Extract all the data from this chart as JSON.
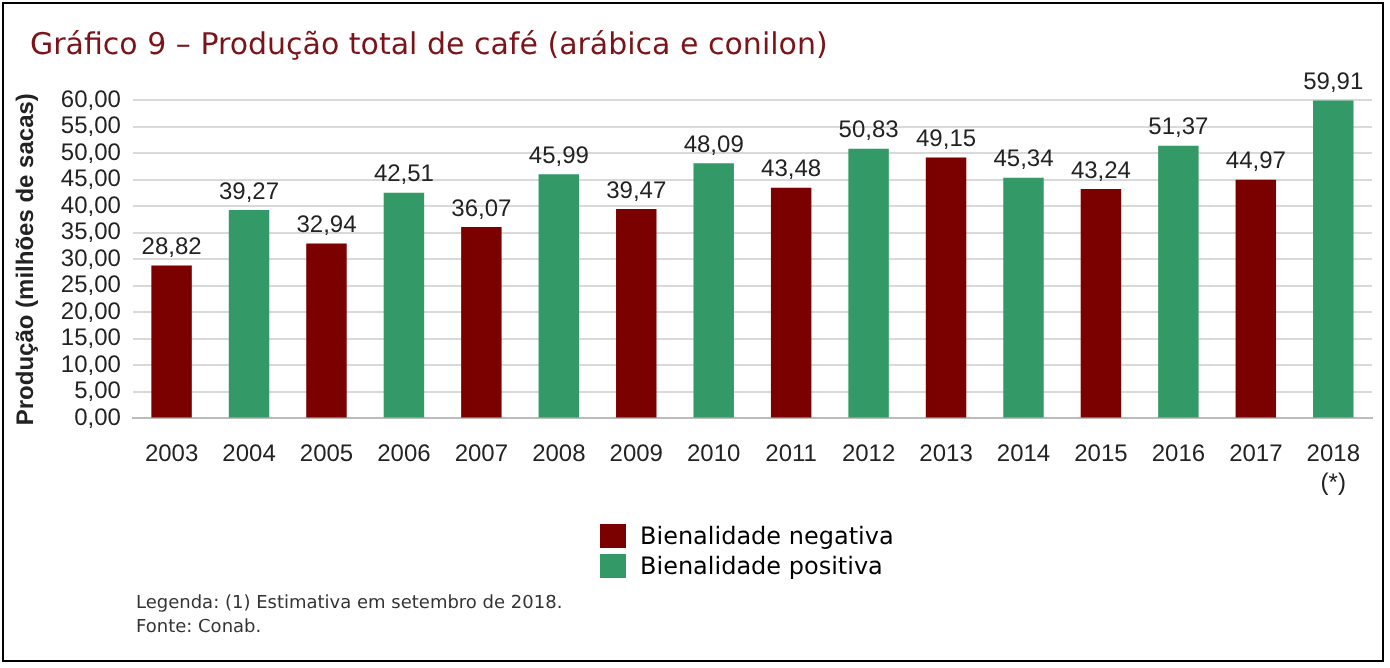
{
  "chart_data": {
    "type": "bar",
    "title": "Gráfico 9 – Produção total de café (arábica e conilon)",
    "ylabel": "Produção (milhões de sacas)",
    "categories": [
      "2003",
      "2004",
      "2005",
      "2006",
      "2007",
      "2008",
      "2009",
      "2010",
      "2011",
      "2012",
      "2013",
      "2014",
      "2015",
      "2016",
      "2017",
      "2018\n(*)"
    ],
    "series": [
      {
        "name": "Bienalidade negativa",
        "color": "#7b0000",
        "values": [
          28.82,
          null,
          32.94,
          null,
          36.07,
          null,
          39.47,
          null,
          43.48,
          null,
          49.15,
          null,
          43.24,
          null,
          44.97,
          null
        ],
        "value_labels": [
          "28,82",
          null,
          "32,94",
          null,
          "36,07",
          null,
          "39,47",
          null,
          "43,48",
          null,
          "49,15",
          null,
          "43,24",
          null,
          "44,97",
          null
        ]
      },
      {
        "name": "Bienalidade positiva",
        "color": "#339966",
        "values": [
          null,
          39.27,
          null,
          42.51,
          null,
          45.99,
          null,
          48.09,
          null,
          50.83,
          null,
          45.34,
          null,
          51.37,
          null,
          59.91
        ],
        "value_labels": [
          null,
          "39,27",
          null,
          "42,51",
          null,
          "45,99",
          null,
          "48,09",
          null,
          "50,83",
          null,
          "45,34",
          null,
          "51,37",
          null,
          "59,91"
        ]
      }
    ],
    "ylim": [
      0,
      60
    ],
    "yticks": [
      {
        "value": 0,
        "label": "0,00"
      },
      {
        "value": 5,
        "label": "5,00"
      },
      {
        "value": 10,
        "label": "10,00"
      },
      {
        "value": 15,
        "label": "15,00"
      },
      {
        "value": 20,
        "label": "20,00"
      },
      {
        "value": 25,
        "label": "25,00"
      },
      {
        "value": 30,
        "label": "30,00"
      },
      {
        "value": 35,
        "label": "35,00"
      },
      {
        "value": 40,
        "label": "40,00"
      },
      {
        "value": 45,
        "label": "45,00"
      },
      {
        "value": 50,
        "label": "50,00"
      },
      {
        "value": 55,
        "label": "55,00"
      },
      {
        "value": 60,
        "label": "60,00"
      }
    ],
    "grid": "y",
    "legend": "bottom",
    "annotations": [
      "Legenda: (1) Estimativa em setembro de 2018.",
      "Fonte: Conab."
    ]
  }
}
